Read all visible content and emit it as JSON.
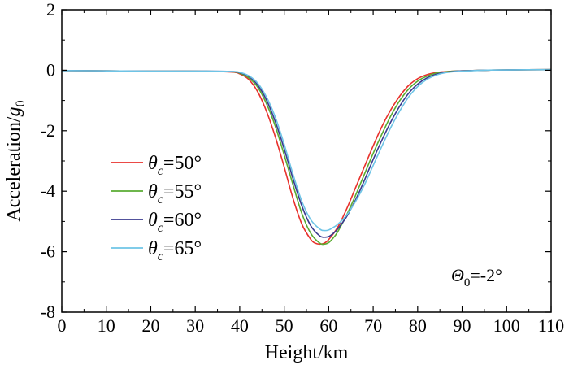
{
  "chart_data": {
    "type": "line",
    "xlabel": "Height/km",
    "ylabel_prefix": "Acceleration/",
    "ylabel_symbol": "g",
    "ylabel_sub": "0",
    "xlim": [
      0,
      110
    ],
    "ylim": [
      -8,
      2
    ],
    "xticks": [
      0,
      10,
      20,
      30,
      40,
      50,
      60,
      70,
      80,
      90,
      100,
      110
    ],
    "yticks": [
      2,
      0,
      -2,
      -4,
      -6,
      -8
    ],
    "xtick_labels": [
      "0",
      "10",
      "20",
      "30",
      "40",
      "50",
      "60",
      "70",
      "80",
      "90",
      "100",
      "110"
    ],
    "ytick_labels": [
      "2",
      "0",
      "-2",
      "-4",
      "-6",
      "-8"
    ],
    "annotation": {
      "symbol": "Θ",
      "sub": "0",
      "text": "=-2°"
    },
    "legend_position": "center-left",
    "series": [
      {
        "name": "θc=50°",
        "symbol": "θ",
        "sub": "c",
        "value_text": "=50°",
        "color": "#e8302b",
        "x": [
          0,
          10,
          20,
          30,
          38,
          40,
          42,
          44,
          46,
          48,
          50,
          52,
          54,
          56,
          57,
          58,
          59,
          60,
          62,
          64,
          66,
          68,
          70,
          72,
          74,
          76,
          78,
          80,
          82,
          84,
          86,
          88,
          90,
          95,
          100,
          110
        ],
        "y": [
          -0.01,
          -0.02,
          -0.03,
          -0.03,
          -0.06,
          -0.12,
          -0.3,
          -0.7,
          -1.35,
          -2.2,
          -3.2,
          -4.25,
          -5.1,
          -5.6,
          -5.72,
          -5.75,
          -5.72,
          -5.6,
          -5.2,
          -4.6,
          -3.9,
          -3.2,
          -2.5,
          -1.85,
          -1.3,
          -0.85,
          -0.5,
          -0.28,
          -0.15,
          -0.08,
          -0.05,
          -0.03,
          -0.02,
          0.0,
          0.01,
          0.02
        ]
      },
      {
        "name": "θc=55°",
        "symbol": "θ",
        "sub": "c",
        "value_text": "=55°",
        "color": "#5aab32",
        "x": [
          0,
          10,
          20,
          30,
          38,
          40,
          42,
          44,
          46,
          48,
          50,
          52,
          54,
          56,
          58,
          59,
          60,
          61,
          62,
          64,
          66,
          68,
          70,
          72,
          74,
          76,
          78,
          80,
          82,
          84,
          86,
          88,
          90,
          95,
          100,
          110
        ],
        "y": [
          -0.01,
          -0.02,
          -0.03,
          -0.03,
          -0.05,
          -0.1,
          -0.25,
          -0.55,
          -1.1,
          -1.85,
          -2.8,
          -3.8,
          -4.75,
          -5.4,
          -5.72,
          -5.75,
          -5.7,
          -5.55,
          -5.35,
          -4.8,
          -4.15,
          -3.45,
          -2.75,
          -2.1,
          -1.5,
          -1.0,
          -0.62,
          -0.36,
          -0.2,
          -0.1,
          -0.06,
          -0.03,
          -0.02,
          0.0,
          0.01,
          0.02
        ]
      },
      {
        "name": "θc=60°",
        "symbol": "θ",
        "sub": "c",
        "value_text": "=60°",
        "color": "#3a3a8e",
        "x": [
          0,
          10,
          20,
          30,
          38,
          40,
          42,
          44,
          46,
          48,
          50,
          52,
          54,
          56,
          58,
          59,
          60,
          61,
          62,
          64,
          66,
          68,
          70,
          72,
          74,
          76,
          78,
          80,
          82,
          84,
          86,
          88,
          90,
          95,
          100,
          110
        ],
        "y": [
          -0.01,
          -0.02,
          -0.03,
          -0.03,
          -0.04,
          -0.08,
          -0.2,
          -0.48,
          -0.98,
          -1.7,
          -2.6,
          -3.6,
          -4.5,
          -5.15,
          -5.48,
          -5.52,
          -5.5,
          -5.4,
          -5.25,
          -4.85,
          -4.3,
          -3.65,
          -2.95,
          -2.3,
          -1.7,
          -1.18,
          -0.76,
          -0.46,
          -0.26,
          -0.14,
          -0.08,
          -0.04,
          -0.02,
          0.0,
          0.01,
          0.02
        ]
      },
      {
        "name": "θc=65°",
        "symbol": "θ",
        "sub": "c",
        "value_text": "=65°",
        "color": "#6ec4e6",
        "x": [
          0,
          10,
          20,
          30,
          38,
          40,
          42,
          44,
          46,
          48,
          50,
          52,
          54,
          56,
          58,
          59,
          60,
          61,
          62,
          64,
          66,
          68,
          70,
          72,
          74,
          76,
          78,
          80,
          82,
          84,
          86,
          88,
          90,
          95,
          100,
          110
        ],
        "y": [
          -0.01,
          -0.02,
          -0.03,
          -0.03,
          -0.04,
          -0.07,
          -0.18,
          -0.42,
          -0.88,
          -1.55,
          -2.45,
          -3.45,
          -4.35,
          -4.95,
          -5.25,
          -5.3,
          -5.28,
          -5.2,
          -5.1,
          -4.8,
          -4.35,
          -3.8,
          -3.15,
          -2.5,
          -1.88,
          -1.34,
          -0.88,
          -0.54,
          -0.31,
          -0.17,
          -0.09,
          -0.05,
          -0.03,
          0.0,
          0.01,
          0.02
        ]
      }
    ]
  }
}
